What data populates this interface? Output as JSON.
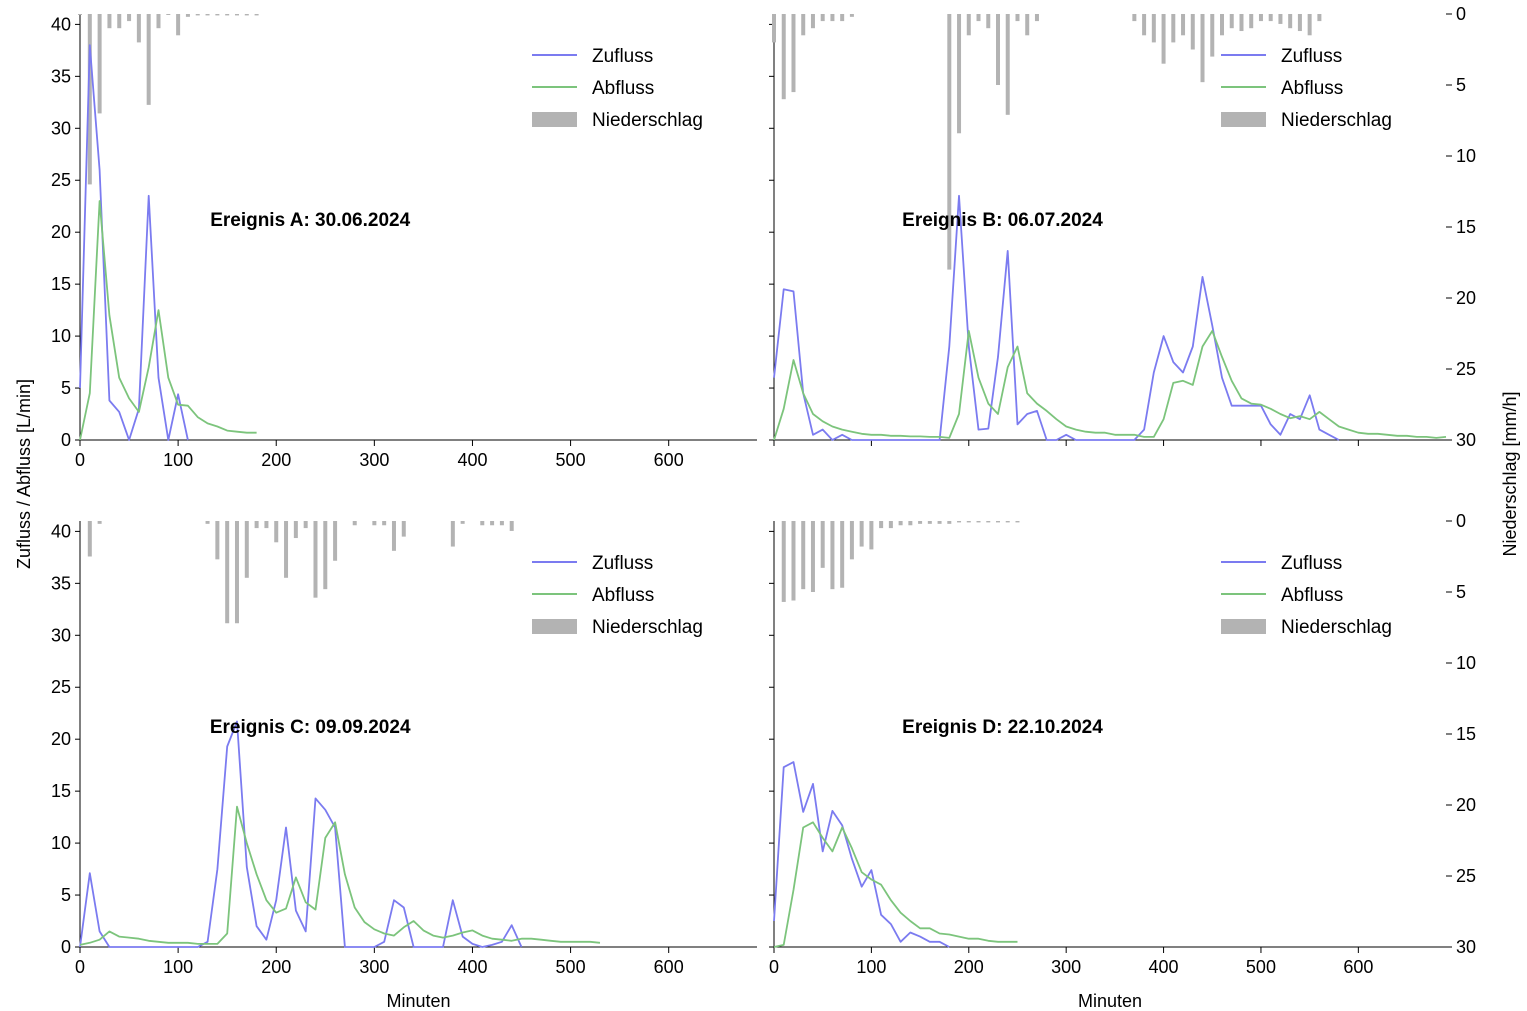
{
  "figure": {
    "ylabel_left": "Zufluss / Abfluss [L/min]",
    "ylabel_right": "Niederschlag [mm/h]",
    "xlabel": "Minuten"
  },
  "chart_data": [
    {
      "type": "line",
      "title": "Ereignis A: 30.06.2024",
      "xlabel": "",
      "ylabel": "Zufluss / Abfluss [L/min]",
      "y2label": "",
      "xlim": [
        0,
        690
      ],
      "ylim": [
        0,
        41
      ],
      "y2lim": [
        30,
        0
      ],
      "x_ticks": [
        "0",
        "100",
        "200",
        "300",
        "400",
        "500",
        "600"
      ],
      "y_ticks": [
        "0",
        "5",
        "10",
        "15",
        "20",
        "25",
        "30",
        "35",
        "40"
      ],
      "y2_ticks": [],
      "legend": {
        "position": "top-right",
        "entries": [
          "Zufluss",
          "Abfluss",
          "Niederschlag"
        ]
      },
      "series": [
        {
          "name": "Zufluss",
          "kind": "line",
          "color": "#7b7bf0",
          "x": [
            0,
            10,
            20,
            30,
            40,
            50,
            60,
            70,
            80,
            90,
            100,
            110
          ],
          "y": [
            5,
            38,
            26,
            3.8,
            2.7,
            0,
            3,
            23.5,
            6,
            0,
            4.4,
            0
          ]
        },
        {
          "name": "Abfluss",
          "kind": "line",
          "color": "#7cc47c",
          "x": [
            0,
            10,
            20,
            30,
            40,
            50,
            60,
            70,
            80,
            90,
            100,
            110,
            120,
            130,
            140,
            150,
            160,
            170,
            180
          ],
          "y": [
            0,
            4.5,
            23,
            12,
            6,
            4,
            2.7,
            7,
            12.5,
            6,
            3.4,
            3.3,
            2.2,
            1.6,
            1.3,
            0.9,
            0.8,
            0.7,
            0.7
          ]
        },
        {
          "name": "Niederschlag",
          "kind": "bar",
          "axis": "right",
          "color": "#b3b3b3",
          "x": [
            0,
            10,
            20,
            30,
            40,
            50,
            60,
            70,
            80,
            90,
            100,
            110,
            120,
            130,
            140,
            150,
            160,
            170,
            180
          ],
          "y": [
            0,
            12,
            7,
            1,
            1,
            0.5,
            2,
            6.4,
            1,
            0,
            1.5,
            0.2,
            0.1,
            0.1,
            0.1,
            0.1,
            0.1,
            0.1,
            0.1
          ]
        }
      ]
    },
    {
      "type": "line",
      "title": "Ereignis B: 06.07.2024",
      "xlabel": "",
      "ylabel": "",
      "y2label": "Niederschlag [mm/h]",
      "xlim": [
        0,
        690
      ],
      "ylim": [
        0,
        41
      ],
      "y2lim": [
        30,
        0
      ],
      "x_ticks": [],
      "y_ticks": [],
      "y2_ticks": [
        "0",
        "5",
        "10",
        "15",
        "20",
        "25",
        "30"
      ],
      "legend": {
        "position": "top-right",
        "entries": [
          "Zufluss",
          "Abfluss",
          "Niederschlag"
        ]
      },
      "series": [
        {
          "name": "Zufluss",
          "kind": "line",
          "color": "#7b7bf0",
          "x": [
            0,
            10,
            20,
            30,
            40,
            50,
            60,
            70,
            80,
            90,
            170,
            180,
            190,
            200,
            210,
            220,
            230,
            240,
            250,
            260,
            270,
            280,
            290,
            300,
            310,
            370,
            380,
            390,
            400,
            410,
            420,
            430,
            440,
            450,
            460,
            470,
            480,
            490,
            500,
            510,
            520,
            530,
            540,
            550,
            560,
            570,
            580
          ],
          "y": [
            6,
            14.5,
            14.3,
            4.5,
            0.5,
            1,
            0,
            0.5,
            0,
            0,
            0,
            9,
            23.5,
            9,
            1,
            1.1,
            8,
            18.2,
            1.5,
            2.5,
            2.8,
            0,
            0,
            0.5,
            0,
            0,
            1,
            6.5,
            10,
            7.5,
            6.5,
            9,
            15.7,
            11,
            6,
            3.3,
            3.3,
            3.3,
            3.3,
            1.5,
            0.5,
            2.5,
            2,
            4.3,
            1,
            0.5,
            0
          ]
        },
        {
          "name": "Abfluss",
          "kind": "line",
          "color": "#7cc47c",
          "x": [
            0,
            10,
            20,
            30,
            40,
            50,
            60,
            70,
            80,
            90,
            100,
            110,
            120,
            130,
            140,
            150,
            160,
            170,
            180,
            190,
            200,
            210,
            220,
            230,
            240,
            250,
            260,
            270,
            280,
            290,
            300,
            310,
            320,
            330,
            340,
            350,
            360,
            370,
            380,
            390,
            400,
            410,
            420,
            430,
            440,
            450,
            460,
            470,
            480,
            490,
            500,
            510,
            520,
            530,
            540,
            550,
            560,
            570,
            580,
            590,
            600,
            610,
            620,
            630,
            640,
            650,
            660,
            670,
            680,
            690
          ],
          "y": [
            0,
            3,
            7.7,
            4.5,
            2.5,
            1.8,
            1.3,
            1,
            0.8,
            0.6,
            0.5,
            0.5,
            0.4,
            0.4,
            0.35,
            0.35,
            0.3,
            0.3,
            0.2,
            2.5,
            10.5,
            6,
            3.5,
            2.5,
            7,
            9,
            4.5,
            3.5,
            2.8,
            2,
            1.3,
            1,
            0.8,
            0.7,
            0.7,
            0.5,
            0.5,
            0.5,
            0.3,
            0.3,
            2,
            5.5,
            5.7,
            5.3,
            9,
            10.5,
            8,
            5.7,
            4,
            3.5,
            3.4,
            3,
            2.5,
            2.1,
            2.3,
            2,
            2.7,
            2,
            1.3,
            1,
            0.7,
            0.6,
            0.6,
            0.5,
            0.4,
            0.4,
            0.3,
            0.3,
            0.2,
            0.3
          ]
        },
        {
          "name": "Niederschlag",
          "kind": "bar",
          "axis": "right",
          "color": "#b3b3b3",
          "x": [
            0,
            10,
            20,
            30,
            40,
            50,
            60,
            70,
            80,
            180,
            190,
            200,
            210,
            220,
            230,
            240,
            250,
            260,
            270,
            370,
            380,
            390,
            400,
            410,
            420,
            430,
            440,
            450,
            460,
            470,
            480,
            490,
            500,
            510,
            520,
            530,
            540,
            550,
            560
          ],
          "y": [
            2,
            6,
            5.5,
            1.5,
            1,
            0.5,
            0.5,
            0.5,
            0.2,
            18,
            8.4,
            1.5,
            0.5,
            1,
            5,
            7.1,
            0.5,
            1.5,
            0.5,
            0.5,
            1.5,
            2,
            3.5,
            2,
            1.5,
            2.5,
            4.8,
            3,
            1.5,
            1,
            1.2,
            1,
            0.5,
            0.5,
            0.7,
            1,
            1.2,
            1.5,
            0.5
          ]
        }
      ]
    },
    {
      "type": "line",
      "title": "Ereignis C: 09.09.2024",
      "xlabel": "Minuten",
      "ylabel": "Zufluss / Abfluss [L/min]",
      "y2label": "",
      "xlim": [
        0,
        690
      ],
      "ylim": [
        0,
        41
      ],
      "y2lim": [
        30,
        0
      ],
      "x_ticks": [
        "0",
        "100",
        "200",
        "300",
        "400",
        "500",
        "600"
      ],
      "y_ticks": [
        "0",
        "5",
        "10",
        "15",
        "20",
        "25",
        "30",
        "35",
        "40"
      ],
      "y2_ticks": [],
      "legend": {
        "position": "top-right",
        "entries": [
          "Zufluss",
          "Abfluss",
          "Niederschlag"
        ]
      },
      "series": [
        {
          "name": "Zufluss",
          "kind": "line",
          "color": "#7b7bf0",
          "x": [
            0,
            10,
            20,
            30,
            40,
            120,
            130,
            140,
            150,
            160,
            170,
            180,
            190,
            200,
            210,
            220,
            230,
            240,
            250,
            260,
            270,
            280,
            290,
            300,
            310,
            320,
            330,
            340,
            350,
            360,
            370,
            380,
            390,
            400,
            410,
            420,
            430,
            440,
            450
          ],
          "y": [
            0,
            7.1,
            1.5,
            0,
            0,
            0,
            0.5,
            7.5,
            19.3,
            21.7,
            7.7,
            2,
            0.7,
            4.5,
            11.5,
            3.5,
            1.5,
            14.3,
            13.2,
            11.5,
            0,
            0,
            0,
            0,
            0.5,
            4.5,
            3.8,
            0,
            0,
            0,
            0,
            4.5,
            1,
            0.3,
            0,
            0.2,
            0.5,
            2.1,
            0
          ]
        },
        {
          "name": "Abfluss",
          "kind": "line",
          "color": "#7cc47c",
          "x": [
            0,
            10,
            20,
            30,
            40,
            50,
            60,
            70,
            80,
            90,
            100,
            110,
            120,
            130,
            140,
            150,
            160,
            170,
            180,
            190,
            200,
            210,
            220,
            230,
            240,
            250,
            260,
            270,
            280,
            290,
            300,
            310,
            320,
            330,
            340,
            350,
            360,
            370,
            380,
            390,
            400,
            410,
            420,
            430,
            440,
            450,
            460,
            470,
            480,
            490,
            500,
            510,
            520,
            530
          ],
          "y": [
            0.2,
            0.4,
            0.7,
            1.5,
            1,
            0.9,
            0.8,
            0.6,
            0.5,
            0.4,
            0.4,
            0.4,
            0.3,
            0.3,
            0.3,
            1.3,
            13.5,
            10,
            7,
            4.5,
            3.3,
            3.7,
            6.7,
            4.3,
            3.6,
            10.5,
            12,
            7,
            3.8,
            2.4,
            1.7,
            1.3,
            1.1,
            1.9,
            2.5,
            1.6,
            1.1,
            0.9,
            1.1,
            1.4,
            1.6,
            1.1,
            0.8,
            0.7,
            0.6,
            0.8,
            0.8,
            0.7,
            0.6,
            0.5,
            0.5,
            0.5,
            0.5,
            0.4
          ]
        },
        {
          "name": "Niederschlag",
          "kind": "bar",
          "axis": "right",
          "color": "#b3b3b3",
          "x": [
            10,
            20,
            130,
            140,
            150,
            160,
            170,
            180,
            190,
            200,
            210,
            220,
            230,
            240,
            250,
            260,
            280,
            300,
            310,
            320,
            330,
            380,
            390,
            410,
            420,
            430,
            440
          ],
          "y": [
            2.5,
            0.2,
            0.2,
            2.7,
            7.2,
            7.2,
            4,
            0.5,
            0.5,
            1.5,
            4,
            1.2,
            0.5,
            5.4,
            4.8,
            2.8,
            0.3,
            0.3,
            0.3,
            2.1,
            1.1,
            1.8,
            0.2,
            0.3,
            0.3,
            0.3,
            0.7
          ]
        }
      ]
    },
    {
      "type": "line",
      "title": "Ereignis D: 22.10.2024",
      "xlabel": "Minuten",
      "ylabel": "",
      "y2label": "Niederschlag [mm/h]",
      "xlim": [
        0,
        690
      ],
      "ylim": [
        0,
        41
      ],
      "y2lim": [
        30,
        0
      ],
      "x_ticks": [
        "0",
        "100",
        "200",
        "300",
        "400",
        "500",
        "600"
      ],
      "y_ticks": [],
      "y2_ticks": [
        "0",
        "5",
        "10",
        "15",
        "20",
        "25",
        "30"
      ],
      "legend": {
        "position": "top-right",
        "entries": [
          "Zufluss",
          "Abfluss",
          "Niederschlag"
        ]
      },
      "series": [
        {
          "name": "Zufluss",
          "kind": "line",
          "color": "#7b7bf0",
          "x": [
            0,
            10,
            20,
            30,
            40,
            50,
            60,
            70,
            80,
            90,
            100,
            110,
            120,
            130,
            140,
            150,
            160,
            170,
            180
          ],
          "y": [
            2.5,
            17.3,
            17.8,
            13,
            15.7,
            9.2,
            13.1,
            11.7,
            8.5,
            5.8,
            7.4,
            3.1,
            2.2,
            0.5,
            1.4,
            1,
            0.5,
            0.5,
            0
          ]
        },
        {
          "name": "Abfluss",
          "kind": "line",
          "color": "#7cc47c",
          "x": [
            0,
            10,
            20,
            30,
            40,
            50,
            60,
            70,
            80,
            90,
            100,
            110,
            120,
            130,
            140,
            150,
            160,
            170,
            180,
            190,
            200,
            210,
            220,
            230,
            240,
            250
          ],
          "y": [
            0,
            0.2,
            5.5,
            11.5,
            12,
            10.5,
            9.2,
            11.5,
            9.5,
            7.2,
            6.5,
            6,
            4.5,
            3.3,
            2.5,
            1.8,
            1.8,
            1.3,
            1.2,
            1,
            0.8,
            0.8,
            0.6,
            0.5,
            0.5,
            0.5
          ]
        },
        {
          "name": "Niederschlag",
          "kind": "bar",
          "axis": "right",
          "color": "#b3b3b3",
          "x": [
            10,
            20,
            30,
            40,
            50,
            60,
            70,
            80,
            90,
            100,
            110,
            120,
            130,
            140,
            150,
            160,
            170,
            180,
            190,
            200,
            210,
            220,
            230,
            240,
            250
          ],
          "y": [
            5.7,
            5.6,
            4.8,
            5,
            3.3,
            4.8,
            4.7,
            2.7,
            1.8,
            2,
            0.5,
            0.5,
            0.3,
            0.3,
            0.2,
            0.2,
            0.2,
            0.2,
            0.1,
            0.1,
            0.1,
            0.1,
            0.1,
            0.1,
            0.1
          ]
        }
      ]
    }
  ]
}
